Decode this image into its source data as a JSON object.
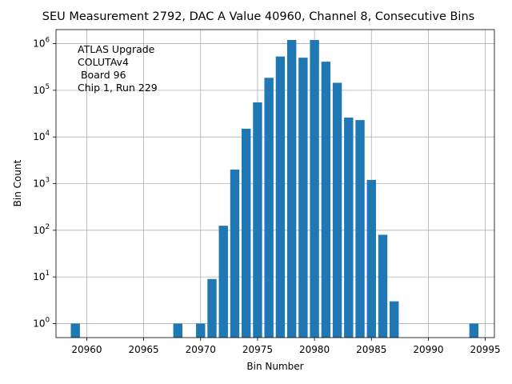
{
  "chart_data": {
    "type": "bar",
    "title": "SEU Measurement 2792, DAC A Value 40960, Channel 8, Consecutive Bins",
    "xlabel": "Bin Number",
    "ylabel": "Bin Count",
    "yscale": "log",
    "xlim": [
      20957.3,
      20995.8
    ],
    "ylim": [
      0.5,
      2000000
    ],
    "grid": true,
    "color": "#1f77b4",
    "annotation": [
      "ATLAS Upgrade",
      "COLUTAv4",
      " Board 96",
      "Chip 1, Run 229"
    ],
    "annotation_position": "top-left",
    "x_ticks": [
      20960,
      20965,
      20970,
      20975,
      20980,
      20985,
      20990,
      20995
    ],
    "y_ticks": [
      {
        "value": 1,
        "base": "10",
        "exp": "0"
      },
      {
        "value": 10,
        "base": "10",
        "exp": "1"
      },
      {
        "value": 100,
        "base": "10",
        "exp": "2"
      },
      {
        "value": 1000,
        "base": "10",
        "exp": "3"
      },
      {
        "value": 10000,
        "base": "10",
        "exp": "4"
      },
      {
        "value": 100000,
        "base": "10",
        "exp": "5"
      },
      {
        "value": 1000000,
        "base": "10",
        "exp": "6"
      }
    ],
    "bars": [
      {
        "x": 20959,
        "y": 1
      },
      {
        "x": 20968,
        "y": 1
      },
      {
        "x": 20970,
        "y": 1
      },
      {
        "x": 20971,
        "y": 9
      },
      {
        "x": 20972,
        "y": 125
      },
      {
        "x": 20973,
        "y": 2000
      },
      {
        "x": 20974,
        "y": 15000
      },
      {
        "x": 20975,
        "y": 55000
      },
      {
        "x": 20976,
        "y": 185000
      },
      {
        "x": 20977,
        "y": 530000
      },
      {
        "x": 20978,
        "y": 1200000
      },
      {
        "x": 20979,
        "y": 500000
      },
      {
        "x": 20980,
        "y": 1200000
      },
      {
        "x": 20981,
        "y": 410000
      },
      {
        "x": 20982,
        "y": 145000
      },
      {
        "x": 20983,
        "y": 26000
      },
      {
        "x": 20984,
        "y": 23000
      },
      {
        "x": 20985,
        "y": 1200
      },
      {
        "x": 20986,
        "y": 80
      },
      {
        "x": 20987,
        "y": 3
      },
      {
        "x": 20994,
        "y": 1
      }
    ]
  }
}
